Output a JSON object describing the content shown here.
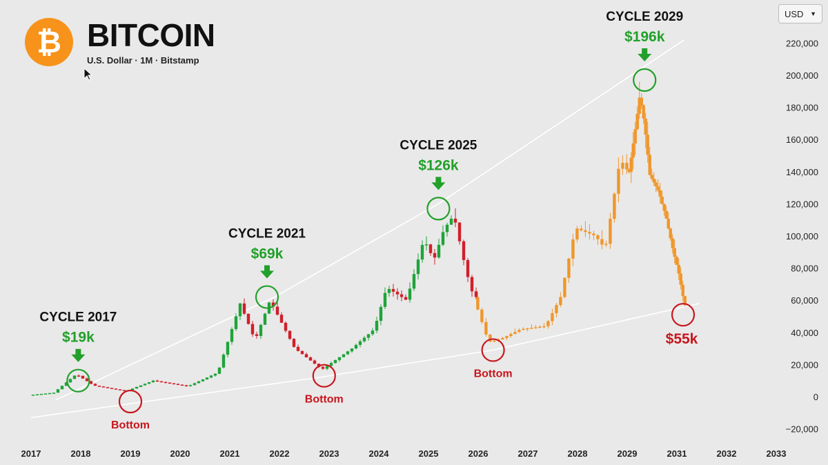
{
  "header": {
    "logo_glyph": "₿",
    "title": "BITCOIN",
    "subtitle": "U.S. Dollar · 1M · Bitstamp"
  },
  "currency_select": {
    "value": "USD"
  },
  "icons": {
    "currency_chevron": "chevron-down-icon",
    "cursor": "mouse-pointer-icon",
    "arrows": "arrow-down-icon"
  },
  "colors": {
    "background": "#e9e9e9",
    "bitcoin_orange": "#f7931a",
    "candle_up": "#1fa33a",
    "candle_down": "#d01f2a",
    "projection": "#f0962a",
    "trendline": "#ffffff",
    "cycle_green": "#22a02a",
    "bottom_red": "#c8161d"
  },
  "chart_data": {
    "type": "candlestick",
    "x_ticks": [
      "2017",
      "2018",
      "2019",
      "2020",
      "2021",
      "2022",
      "2023",
      "2024",
      "2025",
      "2026",
      "2027",
      "2028",
      "2029",
      "2031",
      "2032",
      "2033"
    ],
    "y_ticks": [
      "220,000",
      "200,000",
      "180,000",
      "160,000",
      "140,000",
      "120,000",
      "100,000",
      "80,000",
      "60,000",
      "40,000",
      "20,000",
      "0",
      "−20,000"
    ],
    "ylim": [
      -25000,
      230000
    ],
    "historical_anchor_points": [
      {
        "year": 2017.0,
        "price": 1000
      },
      {
        "year": 2017.5,
        "price": 2500
      },
      {
        "year": 2017.95,
        "price": 14000
      },
      {
        "year": 2018.3,
        "price": 7000
      },
      {
        "year": 2018.95,
        "price": 3500
      },
      {
        "year": 2019.5,
        "price": 10000
      },
      {
        "year": 2020.2,
        "price": 6500
      },
      {
        "year": 2020.8,
        "price": 15000
      },
      {
        "year": 2021.25,
        "price": 58000
      },
      {
        "year": 2021.55,
        "price": 35000
      },
      {
        "year": 2021.85,
        "price": 60000
      },
      {
        "year": 2022.35,
        "price": 30000
      },
      {
        "year": 2022.9,
        "price": 17000
      },
      {
        "year": 2023.5,
        "price": 30000
      },
      {
        "year": 2023.95,
        "price": 42000
      },
      {
        "year": 2024.2,
        "price": 68000
      },
      {
        "year": 2024.6,
        "price": 60000
      },
      {
        "year": 2024.95,
        "price": 98000
      },
      {
        "year": 2025.15,
        "price": 85000
      },
      {
        "year": 2025.35,
        "price": 104000
      },
      {
        "year": 2025.55,
        "price": 113000
      },
      {
        "year": 2025.8,
        "price": 78000
      },
      {
        "year": 2025.95,
        "price": 62000
      }
    ],
    "projection_anchor_points": [
      {
        "year": 2025.95,
        "price": 62000
      },
      {
        "year": 2026.25,
        "price": 34000
      },
      {
        "year": 2026.5,
        "price": 36000
      },
      {
        "year": 2026.9,
        "price": 42000
      },
      {
        "year": 2027.4,
        "price": 44000
      },
      {
        "year": 2027.7,
        "price": 62000
      },
      {
        "year": 2028.0,
        "price": 105000
      },
      {
        "year": 2028.4,
        "price": 100000
      },
      {
        "year": 2028.6,
        "price": 92000
      },
      {
        "year": 2028.9,
        "price": 148000
      },
      {
        "year": 2029.1,
        "price": 138000
      },
      {
        "year": 2029.4,
        "price": 170000
      },
      {
        "year": 2029.55,
        "price": 188000
      },
      {
        "year": 2029.75,
        "price": 168000
      },
      {
        "year": 2029.95,
        "price": 138000
      },
      {
        "year": 2030.3,
        "price": 128000
      },
      {
        "year": 2030.6,
        "price": 112000
      },
      {
        "year": 2030.9,
        "price": 90000
      },
      {
        "year": 2031.1,
        "price": 78000
      },
      {
        "year": 2031.35,
        "price": 57000
      }
    ],
    "trendlines": [
      {
        "name": "upper",
        "points": [
          {
            "year": 2017.5,
            "price": -2000
          },
          {
            "year": 2021.9,
            "price": 62000
          },
          {
            "year": 2025.2,
            "price": 120000
          },
          {
            "year": 2031.3,
            "price": 222000
          }
        ]
      },
      {
        "name": "lower",
        "points": [
          {
            "year": 2017.0,
            "price": -13000
          },
          {
            "year": 2022.8,
            "price": 12000
          },
          {
            "year": 2026.3,
            "price": 29000
          },
          {
            "year": 2031.9,
            "price": 58000
          }
        ]
      }
    ],
    "annotations": [
      {
        "kind": "peak",
        "label": "CYCLE 2017",
        "value": "$19k",
        "year": 2017.95,
        "price": 10000
      },
      {
        "kind": "bottom",
        "label": "Bottom",
        "year": 2019.0,
        "price": -3000
      },
      {
        "kind": "peak",
        "label": "CYCLE 2021",
        "value": "$69k",
        "year": 2021.75,
        "price": 62000
      },
      {
        "kind": "bottom",
        "label": "Bottom",
        "year": 2022.9,
        "price": 13000
      },
      {
        "kind": "peak",
        "label": "CYCLE 2025",
        "value": "$126k",
        "year": 2025.2,
        "price": 117000
      },
      {
        "kind": "bottom",
        "label": "Bottom",
        "year": 2026.3,
        "price": 29000
      },
      {
        "kind": "peak",
        "label": "CYCLE 2029",
        "value": "$196k",
        "year": 2029.7,
        "price": 197000
      },
      {
        "kind": "target",
        "value": "$55k",
        "year": 2031.25,
        "price": 51000
      }
    ]
  }
}
